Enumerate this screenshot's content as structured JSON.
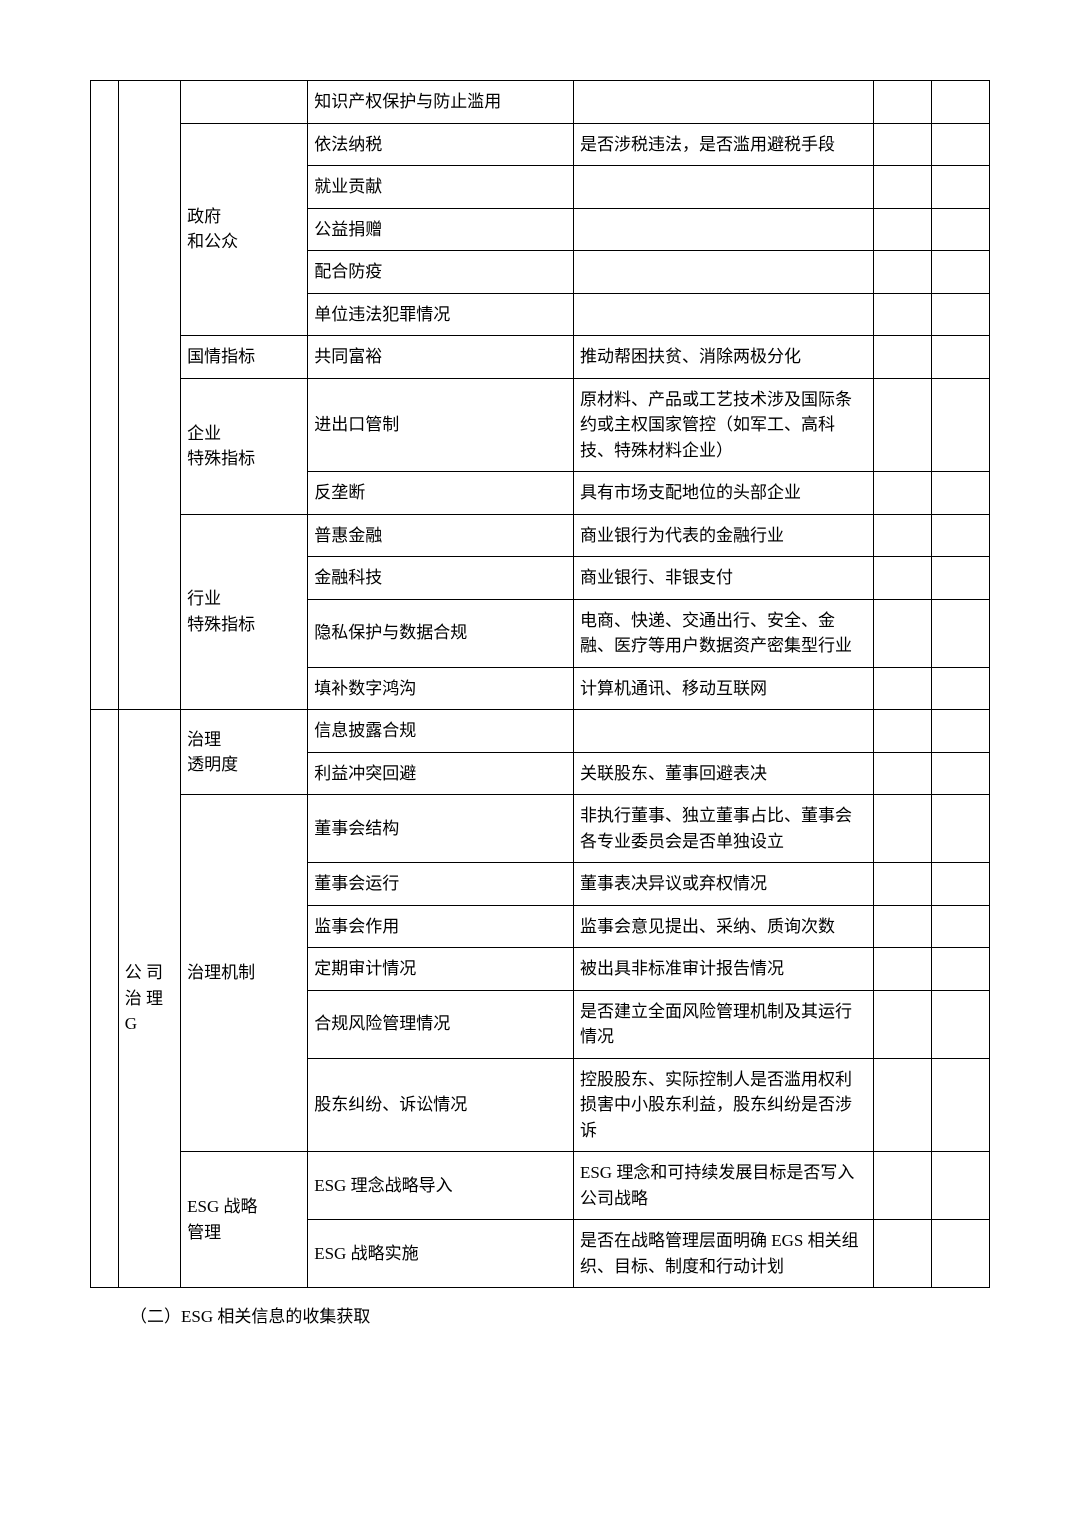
{
  "rows": [
    {
      "c2": "",
      "c3": "知识产权保护与防止滥用",
      "c4": ""
    },
    {
      "c2": "政府\n和公众",
      "c3": "依法纳税",
      "c4": "是否涉税违法，是否滥用避税手段"
    },
    {
      "c3": "就业贡献",
      "c4": ""
    },
    {
      "c3": "公益捐赠",
      "c4": ""
    },
    {
      "c3": "配合防疫",
      "c4": ""
    },
    {
      "c3": "单位违法犯罪情况",
      "c4": ""
    },
    {
      "c2": "国情指标",
      "c3": "共同富裕",
      "c4": "推动帮困扶贫、消除两极分化"
    },
    {
      "c2": "企业\n特殊指标",
      "c3": "进出口管制",
      "c4": "原材料、产品或工艺技术涉及国际条约或主权国家管控（如军工、高科技、特殊材料企业）"
    },
    {
      "c3": "反垄断",
      "c4": "具有市场支配地位的头部企业"
    },
    {
      "c2": "行业\n特殊指标",
      "c3": "普惠金融",
      "c4": "商业银行为代表的金融行业"
    },
    {
      "c3": "金融科技",
      "c4": "商业银行、非银支付"
    },
    {
      "c3": "隐私保护与数据合规",
      "c4": "电商、快递、交通出行、安全、金融、医疗等用户数据资产密集型行业"
    },
    {
      "c3": "填补数字鸿沟",
      "c4": "计算机通讯、移动互联网"
    },
    {
      "c1": "公 司\n治 理\nG",
      "c2": "治理\n透明度",
      "c3": "信息披露合规",
      "c4": ""
    },
    {
      "c3": "利益冲突回避",
      "c4": "关联股东、董事回避表决"
    },
    {
      "c2": "治理机制",
      "c3": "董事会结构",
      "c4": "非执行董事、独立董事占比、董事会各专业委员会是否单独设立"
    },
    {
      "c3": "董事会运行",
      "c4": "董事表决异议或弃权情况"
    },
    {
      "c3": "监事会作用",
      "c4": "监事会意见提出、采纳、质询次数"
    },
    {
      "c3": "定期审计情况",
      "c4": "被出具非标准审计报告情况"
    },
    {
      "c3": "合规风险管理情况",
      "c4": "是否建立全面风险管理机制及其运行情况"
    },
    {
      "c3": "股东纠纷、诉讼情况",
      "c4": "控股股东、实际控制人是否滥用权利损害中小股东利益，股东纠纷是否涉诉"
    },
    {
      "c2": "ESG 战略\n管理",
      "c3": "ESG 理念战略导入",
      "c4": "ESG 理念和可持续发展目标是否写入公司战略"
    },
    {
      "c3": "ESG 战略实施",
      "c4": "是否在战略管理层面明确 EGS 相关组织、目标、制度和行动计划"
    }
  ],
  "footer": "（二）ESG 相关信息的收集获取"
}
